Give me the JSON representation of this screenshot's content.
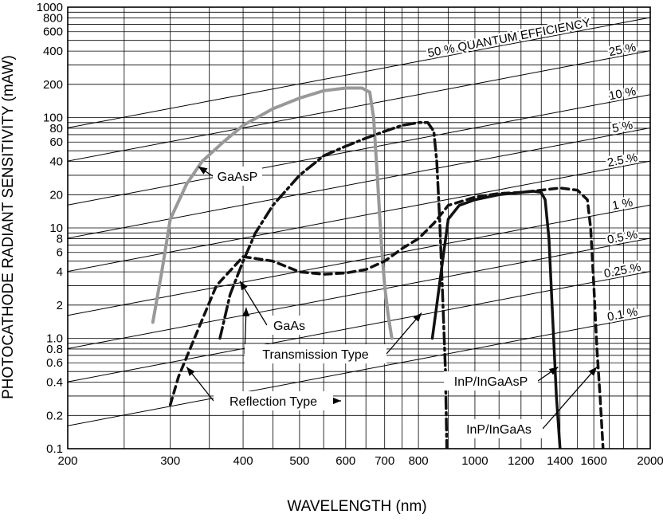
{
  "chart_data": {
    "type": "line",
    "xlabel": "WAVELENGTH (nm)",
    "ylabel": "PHOTOCATHODE RADIANT SENSITIVITY (mAW)",
    "x_scale": "log",
    "y_scale": "log",
    "xlim": [
      200,
      2000
    ],
    "ylim": [
      0.1,
      1000
    ],
    "grid": true,
    "x_ticks": [
      {
        "value": 200,
        "label": "200"
      },
      {
        "value": 300,
        "label": "300"
      },
      {
        "value": 400,
        "label": "400"
      },
      {
        "value": 500,
        "label": "500"
      },
      {
        "value": 600,
        "label": "600"
      },
      {
        "value": 700,
        "label": "700"
      },
      {
        "value": 800,
        "label": "800"
      },
      {
        "value": 1000,
        "label": "1000"
      },
      {
        "value": 1200,
        "label": "1200"
      },
      {
        "value": 1400,
        "label": "1400"
      },
      {
        "value": 1600,
        "label": "1600"
      },
      {
        "value": 2000,
        "label": "2000"
      }
    ],
    "x_minor_grid": [
      250,
      350,
      450,
      550,
      650,
      750,
      900,
      1100,
      1300,
      1500,
      1700,
      1800,
      1900
    ],
    "y_ticks": [
      {
        "value": 0.1,
        "label": "0.1"
      },
      {
        "value": 0.2,
        "label": "0.2"
      },
      {
        "value": 0.4,
        "label": "0.4"
      },
      {
        "value": 0.6,
        "label": "0.6"
      },
      {
        "value": 0.8,
        "label": "0.8"
      },
      {
        "value": 1,
        "label": "1.0"
      },
      {
        "value": 2,
        "label": "2"
      },
      {
        "value": 4,
        "label": "4"
      },
      {
        "value": 6,
        "label": "6"
      },
      {
        "value": 8,
        "label": "8"
      },
      {
        "value": 10,
        "label": "10"
      },
      {
        "value": 20,
        "label": "20"
      },
      {
        "value": 40,
        "label": "40"
      },
      {
        "value": 60,
        "label": "60"
      },
      {
        "value": 80,
        "label": "80"
      },
      {
        "value": 100,
        "label": "100"
      },
      {
        "value": 200,
        "label": "200"
      },
      {
        "value": 400,
        "label": "400"
      },
      {
        "value": 600,
        "label": "600"
      },
      {
        "value": 800,
        "label": "800"
      },
      {
        "value": 1000,
        "label": "1000"
      }
    ],
    "y_minor_grid": [
      0.3,
      0.5,
      0.7,
      0.9,
      3,
      5,
      7,
      9,
      30,
      50,
      70,
      90,
      300,
      500,
      700,
      900
    ],
    "quantum_efficiency_lines": [
      {
        "qe": 0.001,
        "label": "0.1 %"
      },
      {
        "qe": 0.0025,
        "label": "0.25 %"
      },
      {
        "qe": 0.005,
        "label": "0.5 %"
      },
      {
        "qe": 0.01,
        "label": "1 %"
      },
      {
        "qe": 0.025,
        "label": "2.5 %"
      },
      {
        "qe": 0.05,
        "label": "5 %"
      },
      {
        "qe": 0.1,
        "label": "10 %"
      },
      {
        "qe": 0.25,
        "label": "25 %"
      },
      {
        "qe": 0.5,
        "label": "50 % QUANTUM EFFICIENCY"
      }
    ],
    "series": [
      {
        "name": "GaAsP",
        "color": "#999999",
        "style": "solid",
        "x": [
          280,
          290,
          300,
          320,
          340,
          370,
          400,
          450,
          500,
          550,
          600,
          640,
          660,
          670,
          680,
          690,
          700,
          710,
          720
        ],
        "y": [
          1.4,
          4,
          12,
          25,
          40,
          60,
          85,
          120,
          150,
          175,
          185,
          185,
          170,
          100,
          30,
          8,
          3,
          1.6,
          1.0
        ]
      },
      {
        "name": "GaAs",
        "color": "#111111",
        "style": "dashdot",
        "x": [
          365,
          380,
          400,
          420,
          450,
          500,
          550,
          600,
          650,
          700,
          750,
          800,
          830,
          850,
          860,
          870,
          880,
          890,
          895
        ],
        "y": [
          1.0,
          2.5,
          5,
          9,
          16,
          30,
          45,
          55,
          65,
          75,
          85,
          90,
          90,
          75,
          40,
          12,
          2.5,
          0.5,
          0.1
        ]
      },
      {
        "name": "InP/InGaAsP",
        "color": "#111111",
        "style": "solid",
        "x": [
          845,
          860,
          880,
          900,
          940,
          1000,
          1100,
          1200,
          1260,
          1300,
          1320,
          1340,
          1360,
          1380,
          1400
        ],
        "y": [
          1.0,
          2,
          5,
          12,
          16,
          18,
          20,
          21,
          21.5,
          21,
          18,
          8,
          1.5,
          0.3,
          0.1
        ]
      },
      {
        "name": "InP/InGaAs",
        "color": "#111111",
        "style": "dashed",
        "x": [
          300,
          310,
          330,
          360,
          400,
          450,
          500,
          550,
          600,
          650,
          700,
          750,
          800,
          850,
          900,
          1000,
          1100,
          1200,
          1300,
          1400,
          1500,
          1560,
          1580,
          1600,
          1620,
          1640,
          1660
        ],
        "y": [
          0.25,
          0.45,
          1.0,
          3,
          5.5,
          5,
          4,
          3.8,
          3.9,
          4.2,
          5,
          6.5,
          8,
          11,
          16,
          19,
          20.5,
          21,
          22,
          23,
          22,
          18,
          10,
          3,
          0.8,
          0.3,
          0.1
        ]
      }
    ],
    "annotations": [
      {
        "text": "GaAsP",
        "series": "GaAsP",
        "x": 335,
        "y": 36
      },
      {
        "text": "GaAs",
        "series": "GaAs",
        "x": 395,
        "y": 3.3
      },
      {
        "text": "Transmission Type",
        "series": "InP/InGaAsP",
        "x": 810,
        "y": 1.7
      },
      {
        "text": "Reflection Type",
        "series": "InP/InGaAs",
        "x": 320,
        "y": 0.55
      },
      {
        "text": "InP/InGaAsP",
        "series": "InP/InGaAsP",
        "x": 1390,
        "y": 0.55
      },
      {
        "text": "InP/InGaAs",
        "series": "InP/InGaAs",
        "x": 1620,
        "y": 0.55
      }
    ]
  }
}
